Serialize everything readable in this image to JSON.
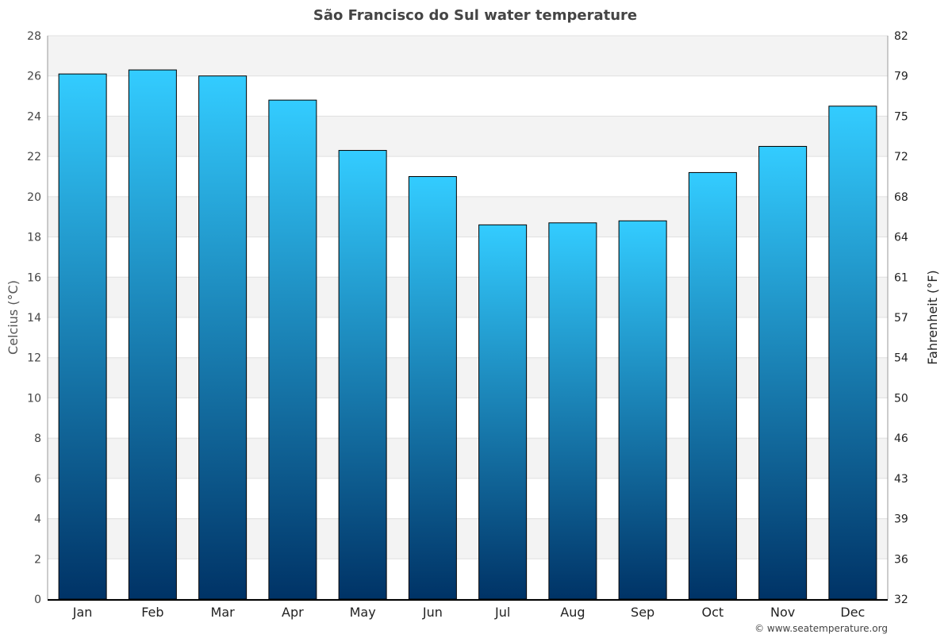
{
  "chart_data": {
    "type": "bar",
    "title": "São Francisco do Sul water temperature",
    "categories": [
      "Jan",
      "Feb",
      "Mar",
      "Apr",
      "May",
      "Jun",
      "Jul",
      "Aug",
      "Sep",
      "Oct",
      "Nov",
      "Dec"
    ],
    "values": [
      26.1,
      26.3,
      26.0,
      24.8,
      22.3,
      21.0,
      18.6,
      18.7,
      18.8,
      21.2,
      22.5,
      24.5
    ],
    "ylabel": "Celcius (°C)",
    "y2label": "Fahrenheit (°F)",
    "ylim": [
      0,
      28
    ],
    "yticks": [
      0,
      2,
      4,
      6,
      8,
      10,
      12,
      14,
      16,
      18,
      20,
      22,
      24,
      26,
      28
    ],
    "y2ticks": [
      "32",
      "36",
      "39",
      "43",
      "46",
      "50",
      "54",
      "57",
      "61",
      "64",
      "68",
      "72",
      "75",
      "79",
      "82"
    ],
    "grid": true,
    "colors": {
      "bar_top": "#33ccff",
      "bar_bottom": "#003366",
      "band": "#f3f3f3"
    }
  },
  "footer": "© www.seatemperature.org"
}
